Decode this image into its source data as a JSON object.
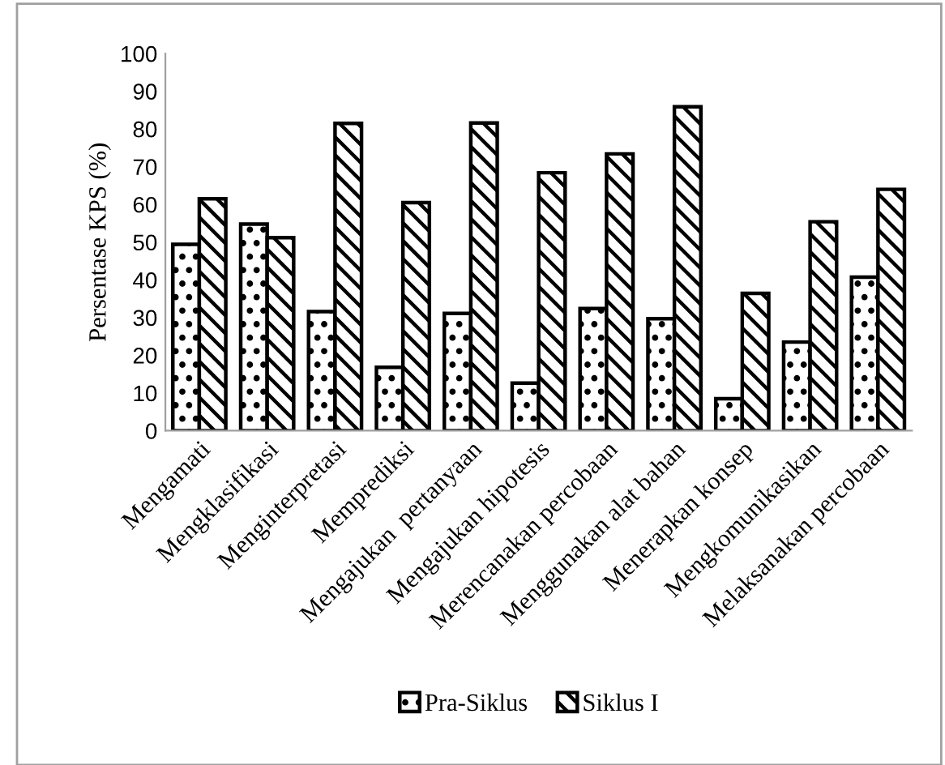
{
  "chart_data": {
    "type": "bar",
    "ylabel": "Persentase KPS (%)",
    "categories": [
      "Mengamati",
      "Mengklasifikasi",
      "Menginterpretasi",
      "Memprediksi",
      "Mengajukan  pertanyaan",
      "Mengajukan hipotesis",
      "Merencanakan percobaan",
      "Menggunakan alat bahan",
      "Menerapkan konsep",
      "Mengkomunikasikan",
      "Melaksanakan percobaan"
    ],
    "series": [
      {
        "name": "Pra-Siklus",
        "color": "#000000",
        "values": [
          49.4,
          54.8,
          31.6,
          16.8,
          31.1,
          12.6,
          32.4,
          29.7,
          8.5,
          23.5,
          40.7
        ]
      },
      {
        "name": "Siklus I",
        "color": "#000000",
        "values": [
          61.5,
          51.2,
          81.5,
          60.5,
          81.6,
          68.4,
          73.4,
          85.9,
          36.4,
          55.4,
          64.0
        ]
      }
    ],
    "ylim": [
      0,
      100
    ],
    "yticks": [
      0,
      10,
      20,
      30,
      40,
      50,
      60,
      70,
      80,
      90,
      100
    ],
    "grid": false,
    "legend": "bottom"
  }
}
